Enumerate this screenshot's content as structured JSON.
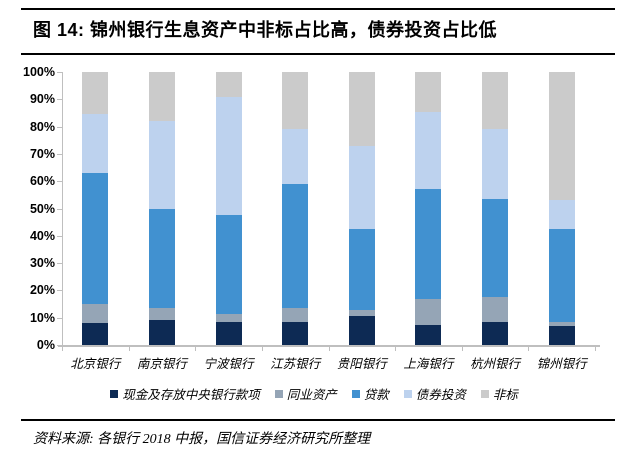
{
  "title": "图 14: 锦州银行生息资产中非标占比高，债券投资占比低",
  "source": "资料来源: 各银行 2018 中报，国信证券经济研究所整理",
  "chart_data": {
    "type": "bar",
    "stacked": true,
    "percent": true,
    "title": "锦州银行生息资产中非标占比高，债券投资占比低",
    "categories": [
      "北京银行",
      "南京银行",
      "宁波银行",
      "江苏银行",
      "贵阳银行",
      "上海银行",
      "杭州银行",
      "锦州银行"
    ],
    "series": [
      {
        "name": "现金及存放中央银行款项",
        "color": "#0d2a54",
        "values": [
          8,
          9,
          8.5,
          8.5,
          10.5,
          7.5,
          8.5,
          7
        ]
      },
      {
        "name": "同业资产",
        "color": "#95a5b6",
        "values": [
          7,
          4.5,
          3,
          5,
          2.5,
          9.5,
          9,
          1.5
        ]
      },
      {
        "name": "贷款",
        "color": "#4191d0",
        "values": [
          48,
          36.5,
          36,
          45.5,
          29.5,
          40,
          36,
          34
        ]
      },
      {
        "name": "债券投资",
        "color": "#bdd2ee",
        "values": [
          21.5,
          32,
          43.5,
          20,
          30.5,
          28.5,
          25.5,
          10.5
        ]
      },
      {
        "name": "非标",
        "color": "#cbcbcb",
        "values": [
          15.5,
          18,
          9,
          21,
          27,
          14.5,
          21,
          47
        ]
      }
    ],
    "y_ticks": [
      "0%",
      "10%",
      "20%",
      "30%",
      "40%",
      "50%",
      "60%",
      "70%",
      "80%",
      "90%",
      "100%"
    ],
    "ylim": [
      0,
      100
    ],
    "xlabel": "",
    "ylabel": "",
    "grid": false,
    "legend_position": "bottom",
    "axis_color": "#bfbfbf"
  }
}
